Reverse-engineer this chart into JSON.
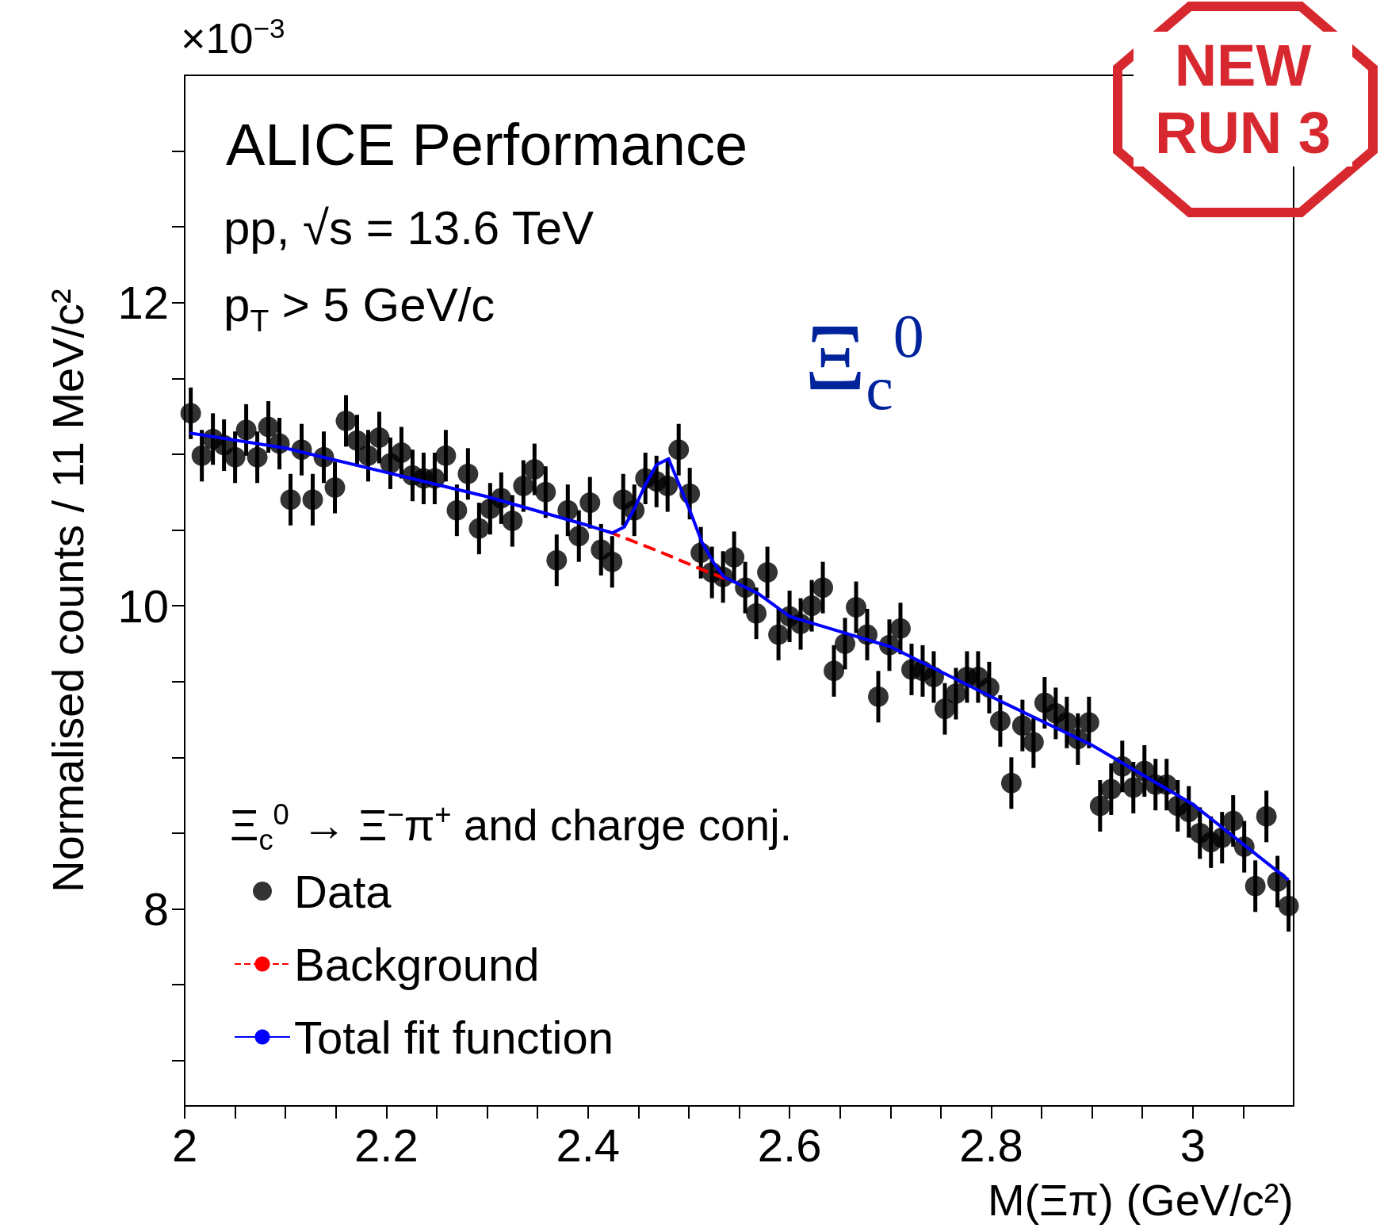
{
  "chart_data": {
    "type": "scatter",
    "title": "ALICE Performance",
    "xlabel": "M(Ξπ) (GeV/c²)",
    "ylabel": "Normalised counts / 11 MeV/c²",
    "legend_title": "Ξ$_{c}$$^{0}$ → Ξ$^{−}$π$^{+}$ and charge conj.",
    "annotations": [
      "×10$^{−3}$",
      "pp,  √s = 13.6 TeV",
      "p$_{T}$ > 5 GeV/c",
      "Ξ$_{c}$$^{0}$",
      "NEW RUN 3"
    ],
    "xlim": [
      2,
      3.1
    ],
    "xticks": [
      2,
      {
        "value": 2.05,
        "label": null
      },
      {
        "value": 2.1,
        "label": null
      },
      {
        "value": 2.15,
        "label": null
      },
      2.2,
      {
        "value": 2.25,
        "label": null
      },
      {
        "value": 2.3,
        "label": null
      },
      {
        "value": 2.35,
        "label": null
      },
      2.4,
      {
        "value": 2.45,
        "label": null
      },
      {
        "value": 2.5,
        "label": null
      },
      {
        "value": 2.55,
        "label": null
      },
      2.6,
      {
        "value": 2.65,
        "label": null
      },
      {
        "value": 2.7,
        "label": null
      },
      {
        "value": 2.75,
        "label": null
      },
      2.8,
      {
        "value": 2.85,
        "label": null
      },
      {
        "value": 2.9,
        "label": null
      },
      {
        "value": 2.95,
        "label": null
      },
      3,
      {
        "value": 3.05,
        "label": null
      }
    ],
    "ylim": [
      6.7,
      13.5
    ],
    "yticks": [
      {
        "value": 7,
        "label": null
      },
      {
        "value": 7.5,
        "label": null
      },
      8,
      {
        "value": 8.5,
        "label": null
      },
      {
        "value": 9,
        "label": null
      },
      {
        "value": 9.5,
        "label": null
      },
      10,
      {
        "value": 10.5,
        "label": null
      },
      {
        "value": 11,
        "label": null
      },
      {
        "value": 11.5,
        "label": null
      },
      12,
      {
        "value": 12.5,
        "label": null
      },
      {
        "value": 13,
        "label": null
      }
    ],
    "grid": false,
    "legend": "bottom left",
    "series": [
      {
        "name": "Data",
        "type": "scatter",
        "color": "#000000",
        "marker": "circle",
        "x": [
          2.006,
          2.017,
          2.028,
          2.039,
          2.05,
          2.061,
          2.072,
          2.083,
          2.094,
          2.105,
          2.116,
          2.127,
          2.138,
          2.149,
          2.16,
          2.171,
          2.182,
          2.193,
          2.204,
          2.215,
          2.226,
          2.237,
          2.248,
          2.259,
          2.27,
          2.281,
          2.292,
          2.303,
          2.314,
          2.325,
          2.336,
          2.347,
          2.358,
          2.369,
          2.38,
          2.391,
          2.402,
          2.413,
          2.424,
          2.435,
          2.446,
          2.457,
          2.468,
          2.479,
          2.49,
          2.501,
          2.512,
          2.523,
          2.534,
          2.545,
          2.556,
          2.567,
          2.578,
          2.589,
          2.6,
          2.611,
          2.622,
          2.633,
          2.644,
          2.655,
          2.666,
          2.677,
          2.688,
          2.699,
          2.71,
          2.721,
          2.732,
          2.743,
          2.754,
          2.765,
          2.776,
          2.787,
          2.798,
          2.809,
          2.82,
          2.831,
          2.842,
          2.853,
          2.864,
          2.875,
          2.886,
          2.897,
          2.908,
          2.919,
          2.93,
          2.941,
          2.952,
          2.963,
          2.974,
          2.985,
          2.996,
          3.007,
          3.018,
          3.029,
          3.04,
          3.051,
          3.062,
          3.073,
          3.084,
          3.095
        ],
        "values": [
          11.27,
          10.99,
          11.1,
          11.06,
          10.98,
          11.16,
          10.98,
          11.18,
          11.07,
          10.7,
          11.03,
          10.7,
          10.98,
          10.78,
          11.22,
          11.09,
          10.99,
          11.11,
          10.94,
          11.01,
          10.86,
          10.84,
          10.84,
          10.99,
          10.63,
          10.87,
          10.51,
          10.64,
          10.71,
          10.56,
          10.79,
          10.9,
          10.75,
          10.3,
          10.63,
          10.46,
          10.68,
          10.37,
          10.29,
          10.7,
          10.63,
          10.84,
          10.82,
          10.79,
          11.03,
          10.74,
          10.35,
          10.22,
          10.19,
          10.32,
          10.12,
          9.95,
          10.22,
          9.81,
          9.93,
          9.88,
          10.0,
          10.12,
          9.57,
          9.75,
          9.99,
          9.81,
          9.4,
          9.74,
          9.85,
          9.58,
          9.57,
          9.53,
          9.32,
          9.42,
          9.53,
          9.53,
          9.46,
          9.24,
          8.83,
          9.21,
          9.1,
          9.36,
          9.29,
          9.23,
          9.12,
          9.23,
          8.68,
          8.79,
          8.94,
          8.8,
          8.91,
          8.82,
          8.82,
          8.68,
          8.64,
          8.5,
          8.44,
          8.47,
          8.58,
          8.41,
          8.15,
          8.61,
          8.18,
          8.02
        ],
        "errors": [
          0.17,
          0.17,
          0.17,
          0.17,
          0.17,
          0.17,
          0.17,
          0.17,
          0.17,
          0.17,
          0.17,
          0.17,
          0.17,
          0.17,
          0.17,
          0.17,
          0.17,
          0.17,
          0.17,
          0.17,
          0.17,
          0.17,
          0.17,
          0.17,
          0.17,
          0.17,
          0.17,
          0.17,
          0.17,
          0.17,
          0.17,
          0.17,
          0.17,
          0.17,
          0.17,
          0.17,
          0.17,
          0.17,
          0.17,
          0.17,
          0.17,
          0.17,
          0.17,
          0.17,
          0.17,
          0.17,
          0.17,
          0.17,
          0.17,
          0.17,
          0.17,
          0.17,
          0.17,
          0.17,
          0.17,
          0.17,
          0.17,
          0.17,
          0.17,
          0.17,
          0.17,
          0.17,
          0.17,
          0.17,
          0.17,
          0.17,
          0.17,
          0.17,
          0.17,
          0.17,
          0.17,
          0.17,
          0.17,
          0.17,
          0.17,
          0.17,
          0.17,
          0.17,
          0.17,
          0.17,
          0.17,
          0.17,
          0.17,
          0.17,
          0.17,
          0.17,
          0.17,
          0.17,
          0.17,
          0.17,
          0.17,
          0.17,
          0.17,
          0.17,
          0.17,
          0.17,
          0.17,
          0.17,
          0.17,
          0.17
        ]
      },
      {
        "name": "Background",
        "type": "line",
        "color": "#ff0000",
        "marker": "none",
        "line_style": "dashed",
        "x": [
          2.42,
          2.47,
          2.52,
          2.54
        ],
        "values": [
          10.49,
          10.36,
          10.22,
          10.17
        ]
      },
      {
        "name": "Total fit function",
        "type": "line",
        "color": "#0000ff",
        "marker": "none",
        "line_style": "solid",
        "x": [
          2.005,
          2.1,
          2.2,
          2.3,
          2.4,
          2.424,
          2.436,
          2.446,
          2.457,
          2.468,
          2.48,
          2.501,
          2.513,
          2.525,
          2.535,
          2.569,
          2.6,
          2.7,
          2.8,
          2.9,
          3.0,
          3.095
        ],
        "values": [
          11.14,
          11.04,
          10.88,
          10.72,
          10.53,
          10.48,
          10.52,
          10.64,
          10.8,
          10.93,
          10.97,
          10.63,
          10.42,
          10.28,
          10.19,
          10.08,
          9.93,
          9.73,
          9.4,
          9.08,
          8.69,
          8.19
        ]
      }
    ]
  }
}
